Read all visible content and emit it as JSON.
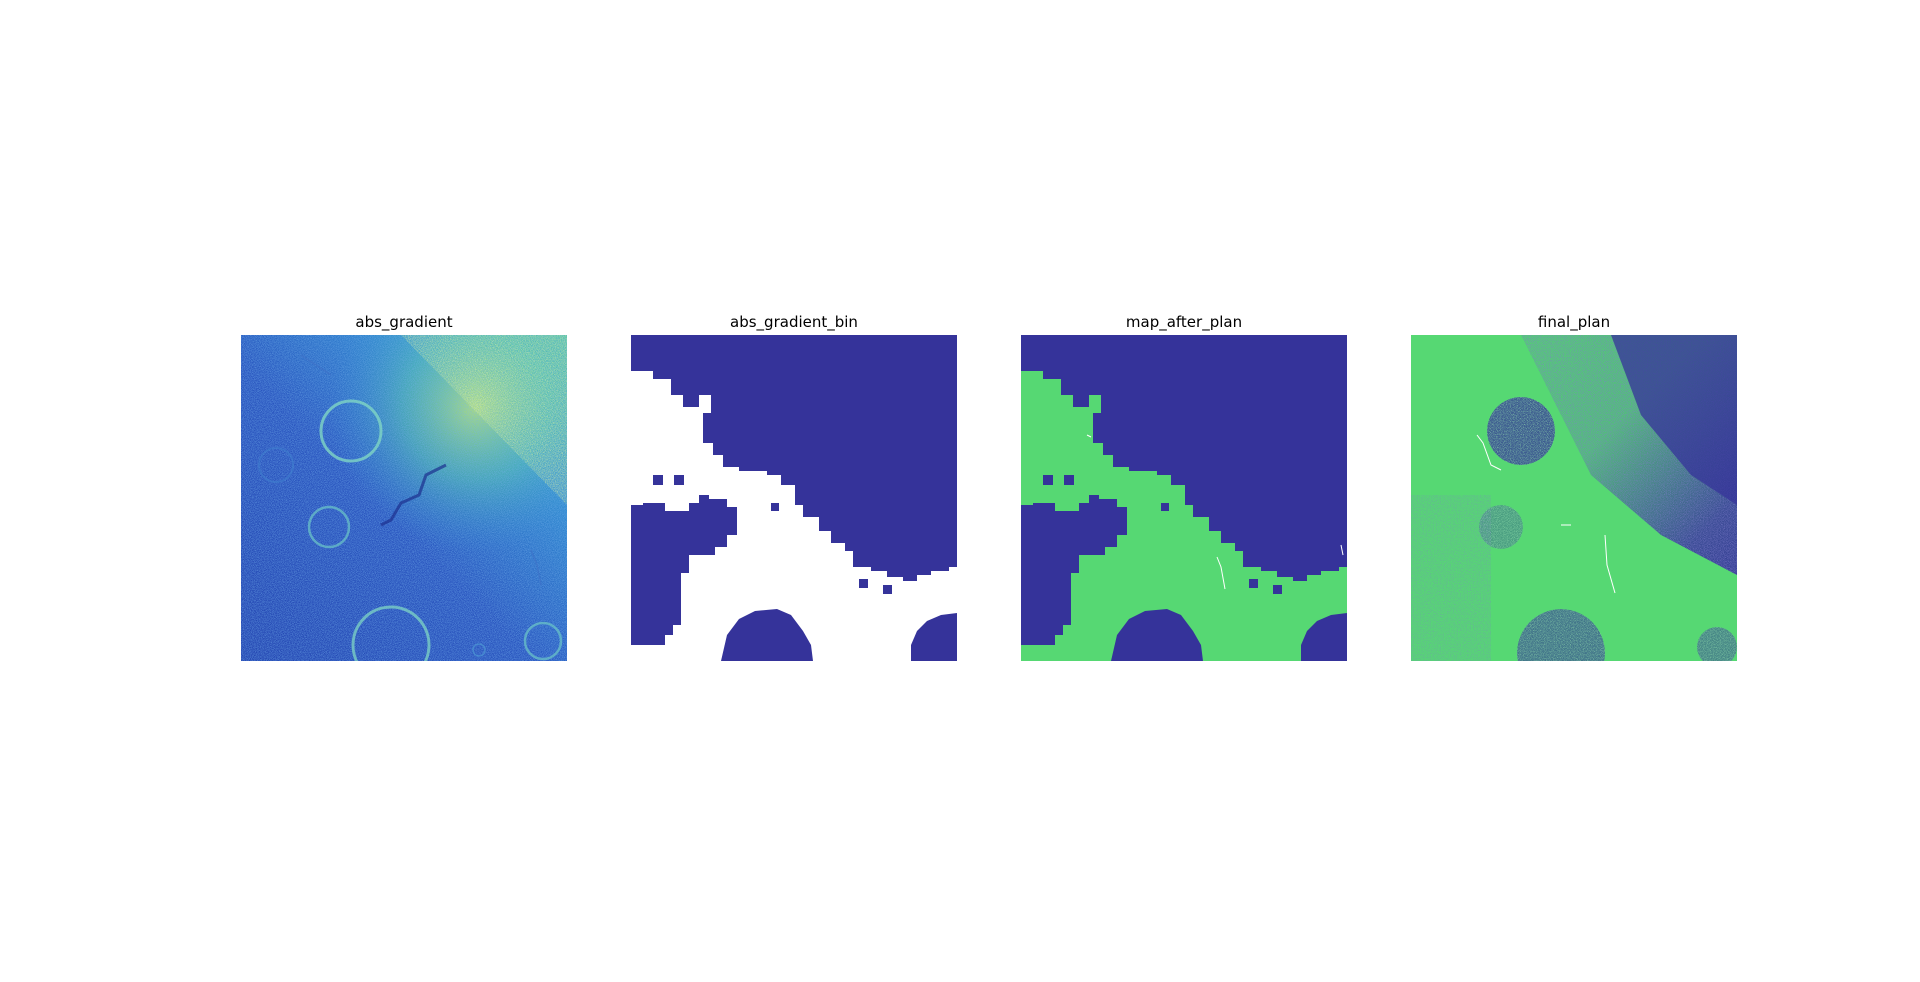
{
  "figure": {
    "panels": [
      {
        "title": "abs_gradient",
        "kind": "gradient-heatmap"
      },
      {
        "title": "abs_gradient_bin",
        "kind": "binary-mask"
      },
      {
        "title": "map_after_plan",
        "kind": "plan-map"
      },
      {
        "title": "final_plan",
        "kind": "noisy-plan"
      }
    ]
  },
  "colors": {
    "background": "#ffffff",
    "dark_blue": "#35339a",
    "mid_blue": "#2a5fc4",
    "light_blue": "#2e8fd6",
    "green": "#56d873",
    "yellow": "#e6f05a",
    "white": "#ffffff"
  }
}
